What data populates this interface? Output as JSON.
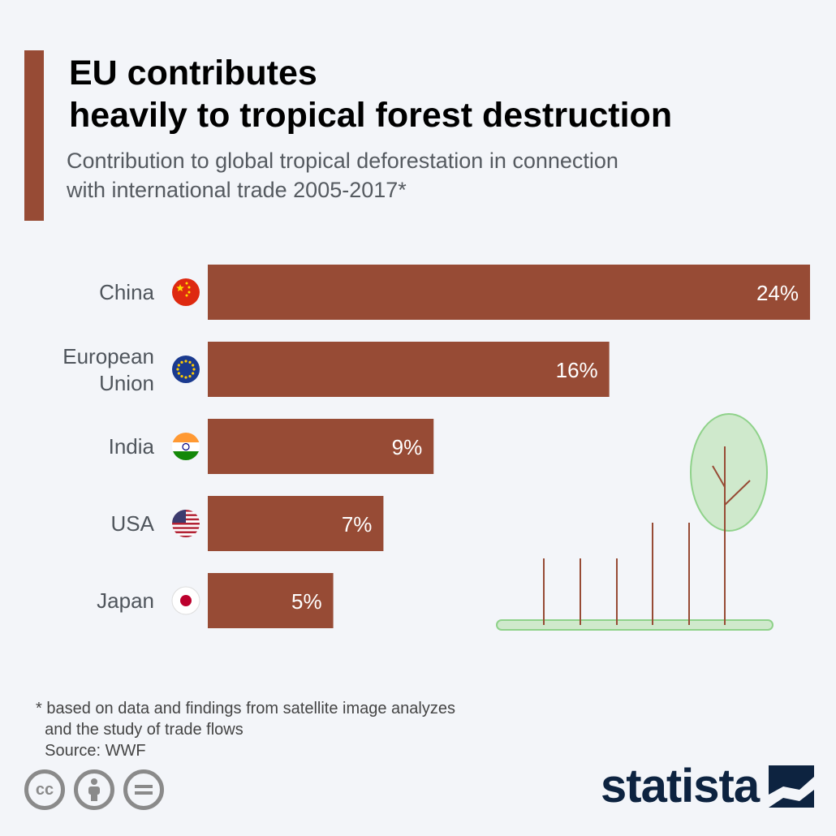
{
  "header": {
    "title_line1": "EU contributes",
    "title_line2": "heavily to tropical forest destruction",
    "subtitle_line1": "Contribution to global tropical deforestation in connection",
    "subtitle_line2": "with international trade 2005-2017*"
  },
  "chart_data": {
    "type": "bar",
    "orientation": "horizontal",
    "categories": [
      "China",
      "European Union",
      "India",
      "USA",
      "Japan"
    ],
    "category_label_lines": [
      [
        "China"
      ],
      [
        "European",
        "Union"
      ],
      [
        "India"
      ],
      [
        "USA"
      ],
      [
        "Japan"
      ]
    ],
    "flag_icons": [
      "china-flag-icon",
      "eu-flag-icon",
      "india-flag-icon",
      "usa-flag-icon",
      "japan-flag-icon"
    ],
    "values": [
      24,
      16,
      9,
      7,
      5
    ],
    "value_labels": [
      "24%",
      "16%",
      "9%",
      "7%",
      "5%"
    ],
    "xlim": [
      0,
      24
    ],
    "grid": false,
    "bar_color": "#974b35"
  },
  "footnote": {
    "line1": "* based on data and findings from satellite image analyzes",
    "line2": "  and the study of trade flows",
    "line3": "  Source: WWF"
  },
  "license_icons": [
    {
      "name": "cc-license-icon",
      "glyph": "cc"
    },
    {
      "name": "attribution-icon",
      "glyph": "person"
    },
    {
      "name": "no-derivatives-icon",
      "glyph": "="
    }
  ],
  "brand": {
    "name": "statista",
    "logo_icon": "statista-logo-icon",
    "color": "#0d2340"
  },
  "illustration": {
    "name": "tree-illustration-icon",
    "leaf_color": "#cfe9cc",
    "stroke_color": "#8fd28a"
  }
}
